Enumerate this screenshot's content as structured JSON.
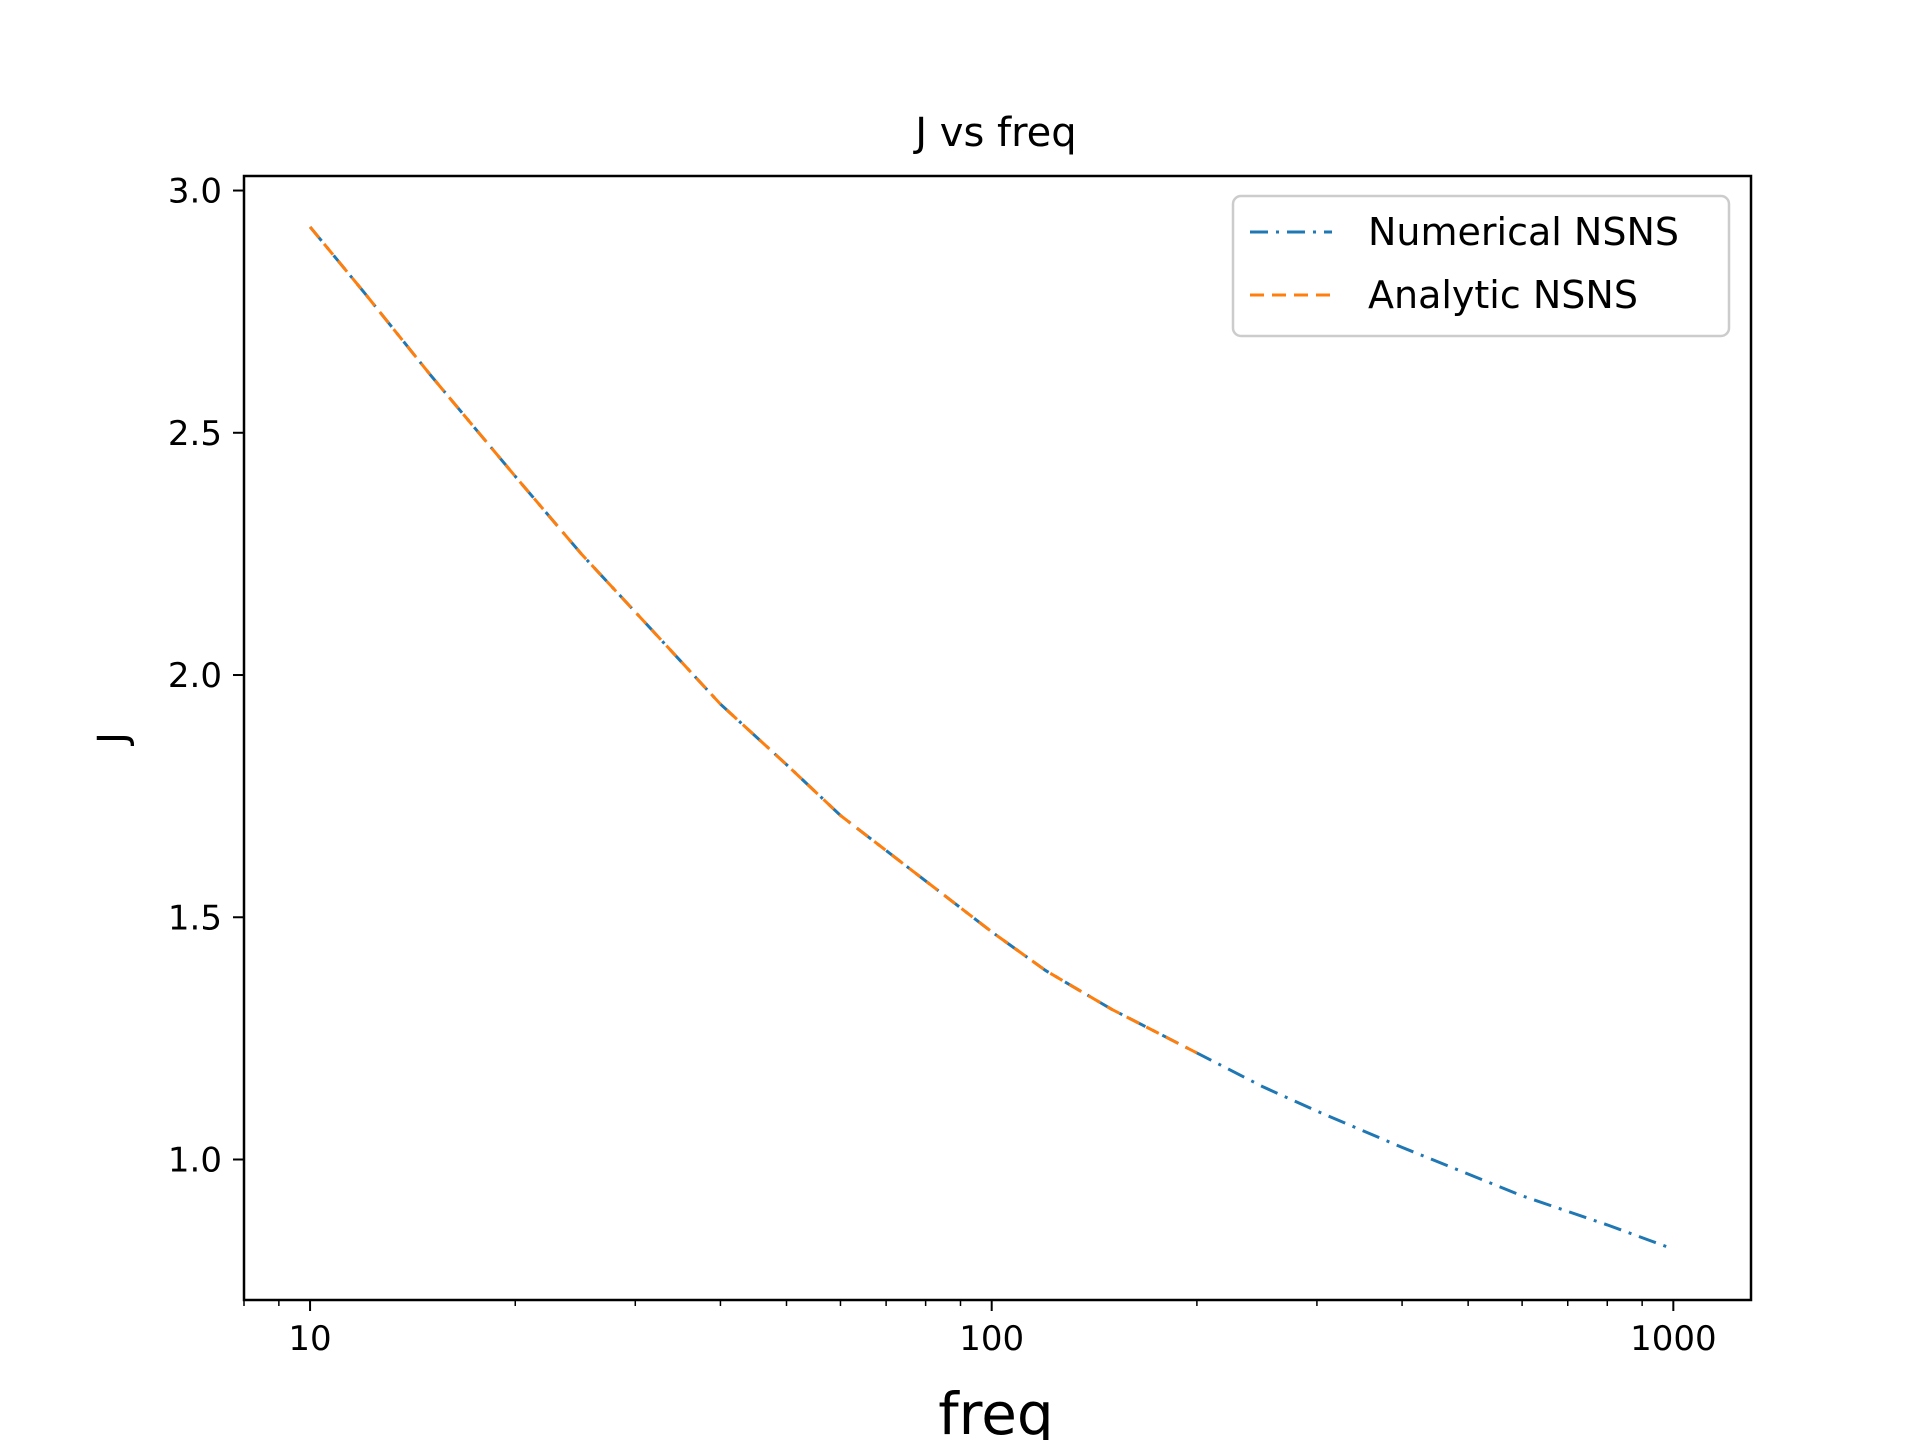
{
  "chart_data": {
    "type": "line",
    "title": "J vs freq",
    "xlabel": "freq",
    "ylabel": "J",
    "xscale": "log",
    "xlim": [
      8,
      1300
    ],
    "ylim": [
      0.71,
      3.03
    ],
    "xticks": [
      {
        "value": 10,
        "label": "10"
      },
      {
        "value": 100,
        "label": "100"
      },
      {
        "value": 1000,
        "label": "1000"
      }
    ],
    "yticks": [
      {
        "value": 1.0,
        "label": "1.0"
      },
      {
        "value": 1.5,
        "label": "1.5"
      },
      {
        "value": 2.0,
        "label": "2.0"
      },
      {
        "value": 2.5,
        "label": "2.5"
      },
      {
        "value": 3.0,
        "label": "3.0"
      }
    ],
    "grid": false,
    "legend_position": "top-right",
    "series": [
      {
        "name": "Numerical NSNS",
        "color": "#1f77b4",
        "linestyle": "dashdot",
        "x": [
          10,
          12,
          15,
          20,
          25,
          30,
          40,
          50,
          60,
          80,
          100,
          120,
          150,
          200,
          250,
          300,
          400,
          500,
          600,
          800,
          1000
        ],
        "y": [
          2.925,
          2.79,
          2.62,
          2.41,
          2.25,
          2.13,
          1.94,
          1.815,
          1.71,
          1.575,
          1.47,
          1.39,
          1.31,
          1.22,
          1.15,
          1.1,
          1.025,
          0.97,
          0.925,
          0.865,
          0.815
        ]
      },
      {
        "name": "Analytic NSNS",
        "color": "#ff7f0e",
        "linestyle": "dashed",
        "x": [
          10,
          12,
          15,
          20,
          25,
          30,
          40,
          50,
          60,
          80,
          100,
          120,
          150,
          200
        ],
        "y": [
          2.925,
          2.79,
          2.62,
          2.41,
          2.25,
          2.13,
          1.94,
          1.815,
          1.71,
          1.575,
          1.47,
          1.39,
          1.31,
          1.22
        ]
      }
    ]
  }
}
